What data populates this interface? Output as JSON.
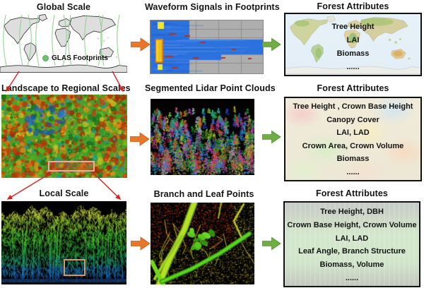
{
  "figure": {
    "rows": [
      {
        "scale_title": "Global Scale",
        "map_legend": "GLAS Footprints",
        "middle_title": "Waveform Signals in Footprints",
        "attributes_title": "Forest Attributes",
        "attributes": [
          "Tree Height",
          "LAI",
          "Biomass",
          "......"
        ]
      },
      {
        "scale_title": "Landscape to Regional Scales",
        "middle_title": "Segmented Lidar Point Clouds",
        "attributes_title": "Forest Attributes",
        "attributes": [
          "Tree Height , Crown Base Height",
          "Canopy Cover",
          "LAI, LAD",
          "Crown Area, Crown Volume",
          "Biomass",
          "......"
        ]
      },
      {
        "scale_title": "Local Scale",
        "middle_title": "Branch and Leaf Points",
        "attributes_title": "Forest Attributes",
        "attributes": [
          "Tree Height, DBH",
          "Crown Base Height, Crown Volume",
          "LAI, LAD",
          "Leaf Angle, Branch Structure",
          "Biomass, Volume",
          "......"
        ]
      }
    ],
    "colors": {
      "flow_arrow_orange": "#E8772B",
      "flow_arrow_green": "#6FAE44",
      "zoom_arrow_red": "#E01E1E",
      "glas_footprint_green": "#6EC06E"
    }
  }
}
